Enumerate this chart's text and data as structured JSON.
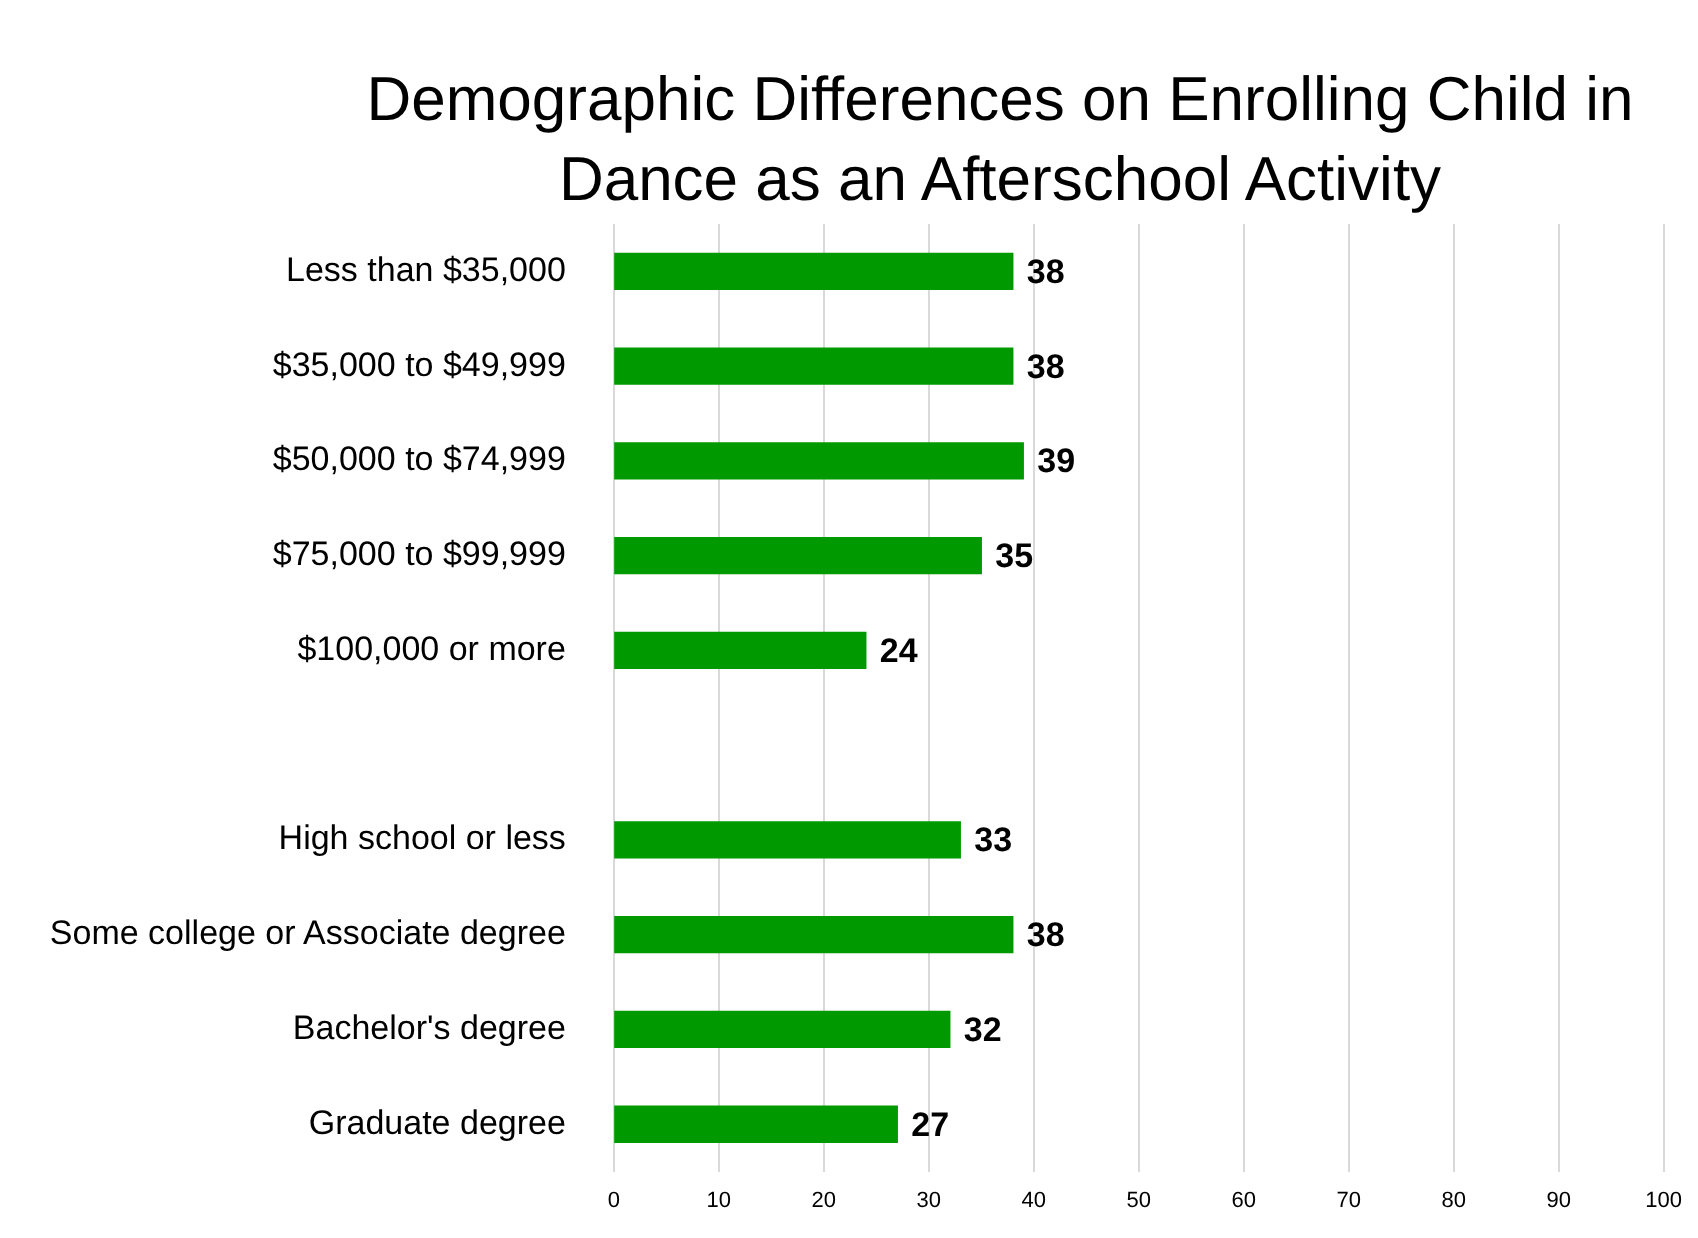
{
  "chart_data": {
    "type": "bar",
    "orientation": "horizontal",
    "title": "Demographic Differences on Enrolling Child in Dance as an Afterschool Activity",
    "categories": [
      "Less than $35,000",
      "$35,000 to $49,999",
      "$50,000 to $74,999",
      "$75,000 to $99,999",
      "$100,000 or more",
      null,
      "High school or less",
      "Some college or Associate degree",
      "Bachelor's degree",
      "Graduate degree"
    ],
    "values": [
      38,
      38,
      39,
      35,
      24,
      null,
      33,
      38,
      32,
      27
    ],
    "color": "#009900",
    "xlim": [
      0,
      100
    ],
    "xticks": [
      0,
      10,
      20,
      30,
      40,
      50,
      60,
      70,
      80,
      90,
      100
    ],
    "grid": "x",
    "data_labels": true,
    "legend": false
  }
}
